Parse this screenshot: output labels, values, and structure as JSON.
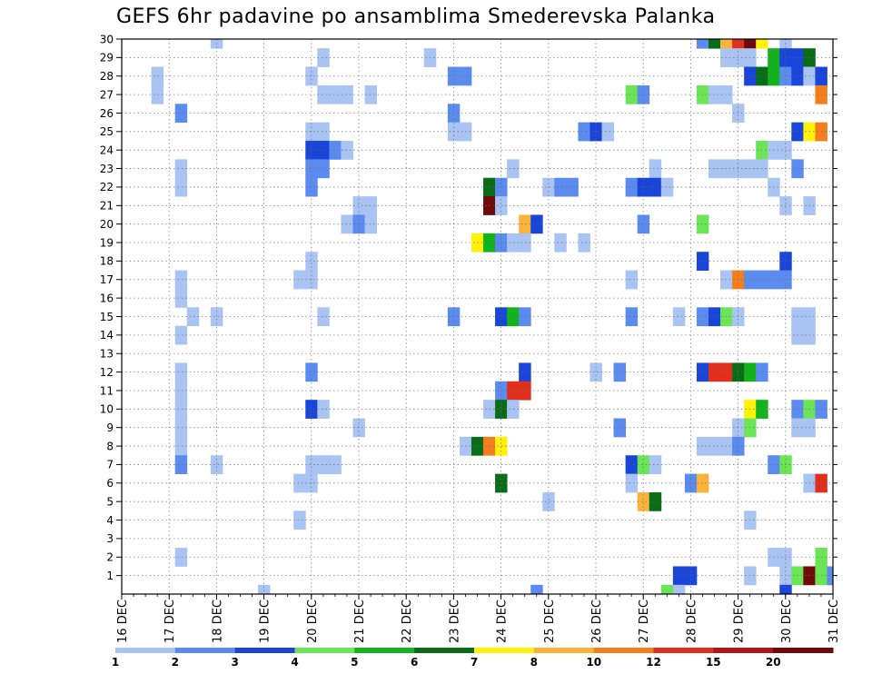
{
  "chart_data": {
    "type": "heatmap",
    "title": "GEFS 6hr padavine po ansamblima Smederevska Palanka",
    "xlabel": "",
    "ylabel": "",
    "x_tick_labels": [
      "16 DEC",
      "17 DEC",
      "18 DEC",
      "19 DEC",
      "20 DEC",
      "21 DEC",
      "22 DEC",
      "23 DEC",
      "24 DEC",
      "25 DEC",
      "26 DEC",
      "27 DEC",
      "28 DEC",
      "29 DEC",
      "30 DEC",
      "31 DEC"
    ],
    "y_tick_labels": [
      "1",
      "2",
      "3",
      "4",
      "5",
      "6",
      "7",
      "8",
      "9",
      "10",
      "11",
      "12",
      "13",
      "14",
      "15",
      "16",
      "17",
      "18",
      "19",
      "20",
      "21",
      "22",
      "23",
      "24",
      "25",
      "26",
      "27",
      "28",
      "29",
      "30"
    ],
    "x_range": [
      0,
      60
    ],
    "y_range": [
      0,
      30
    ],
    "time_step_hours": 6,
    "grid": "dotted",
    "colorbar": {
      "thresholds": [
        1,
        2,
        3,
        4,
        5,
        6,
        7,
        8,
        10,
        12,
        15,
        20
      ],
      "labels": [
        "1",
        "2",
        "3",
        "4",
        "5",
        "6",
        "7",
        "8",
        "10",
        "12",
        "15",
        "20"
      ],
      "colors": [
        "#a9c3f3",
        "#5b8bee",
        "#1945d8",
        "#6be456",
        "#12b31d",
        "#0a6c18",
        "#fff10a",
        "#f9b33a",
        "#f57e1c",
        "#e0301d",
        "#b31316",
        "#6e0a0a"
      ]
    },
    "cells": [
      [
        8,
        30,
        0
      ],
      [
        49,
        30,
        1
      ],
      [
        50,
        30,
        5
      ],
      [
        51,
        30,
        7
      ],
      [
        52,
        30,
        9
      ],
      [
        53,
        30,
        11
      ],
      [
        54,
        30,
        6
      ],
      [
        56,
        30,
        0
      ],
      [
        17,
        29,
        0
      ],
      [
        26,
        29,
        0
      ],
      [
        51,
        29,
        0
      ],
      [
        52,
        29,
        0
      ],
      [
        53,
        29,
        0
      ],
      [
        55,
        29,
        4
      ],
      [
        56,
        29,
        2
      ],
      [
        57,
        29,
        2
      ],
      [
        58,
        29,
        5
      ],
      [
        3,
        28,
        0
      ],
      [
        16,
        28,
        0
      ],
      [
        28,
        28,
        1
      ],
      [
        29,
        28,
        1
      ],
      [
        53,
        28,
        2
      ],
      [
        54,
        28,
        5
      ],
      [
        55,
        28,
        4
      ],
      [
        56,
        28,
        1
      ],
      [
        57,
        28,
        2
      ],
      [
        58,
        28,
        0
      ],
      [
        59,
        28,
        2
      ],
      [
        3,
        27,
        0
      ],
      [
        17,
        27,
        0
      ],
      [
        18,
        27,
        0
      ],
      [
        19,
        27,
        0
      ],
      [
        21,
        27,
        0
      ],
      [
        43,
        27,
        3
      ],
      [
        44,
        27,
        1
      ],
      [
        49,
        27,
        3
      ],
      [
        50,
        27,
        0
      ],
      [
        51,
        27,
        0
      ],
      [
        59,
        27,
        8
      ],
      [
        5,
        26,
        1
      ],
      [
        28,
        26,
        1
      ],
      [
        52,
        26,
        0
      ],
      [
        16,
        25,
        0
      ],
      [
        17,
        25,
        0
      ],
      [
        28,
        25,
        0
      ],
      [
        29,
        25,
        0
      ],
      [
        39,
        25,
        1
      ],
      [
        40,
        25,
        2
      ],
      [
        41,
        25,
        0
      ],
      [
        57,
        25,
        2
      ],
      [
        58,
        25,
        6
      ],
      [
        59,
        25,
        8
      ],
      [
        16,
        24,
        2
      ],
      [
        17,
        24,
        2
      ],
      [
        18,
        24,
        1
      ],
      [
        19,
        24,
        0
      ],
      [
        54,
        24,
        3
      ],
      [
        55,
        24,
        0
      ],
      [
        56,
        24,
        0
      ],
      [
        5,
        23,
        0
      ],
      [
        16,
        23,
        1
      ],
      [
        17,
        23,
        1
      ],
      [
        33,
        23,
        0
      ],
      [
        45,
        23,
        0
      ],
      [
        50,
        23,
        0
      ],
      [
        51,
        23,
        0
      ],
      [
        52,
        23,
        0
      ],
      [
        53,
        23,
        0
      ],
      [
        54,
        23,
        0
      ],
      [
        57,
        23,
        1
      ],
      [
        5,
        22,
        0
      ],
      [
        16,
        22,
        1
      ],
      [
        31,
        22,
        5
      ],
      [
        32,
        22,
        1
      ],
      [
        36,
        22,
        0
      ],
      [
        37,
        22,
        1
      ],
      [
        38,
        22,
        1
      ],
      [
        43,
        22,
        1
      ],
      [
        44,
        22,
        2
      ],
      [
        45,
        22,
        2
      ],
      [
        46,
        22,
        0
      ],
      [
        55,
        22,
        0
      ],
      [
        20,
        21,
        0
      ],
      [
        21,
        21,
        0
      ],
      [
        31,
        21,
        11
      ],
      [
        32,
        21,
        0
      ],
      [
        56,
        21,
        0
      ],
      [
        58,
        21,
        0
      ],
      [
        19,
        20,
        0
      ],
      [
        20,
        20,
        1
      ],
      [
        21,
        20,
        0
      ],
      [
        34,
        20,
        7
      ],
      [
        35,
        20,
        2
      ],
      [
        44,
        20,
        1
      ],
      [
        49,
        20,
        3
      ],
      [
        30,
        19,
        6
      ],
      [
        31,
        19,
        4
      ],
      [
        32,
        19,
        1
      ],
      [
        33,
        19,
        0
      ],
      [
        34,
        19,
        0
      ],
      [
        37,
        19,
        0
      ],
      [
        39,
        19,
        0
      ],
      [
        16,
        18,
        0
      ],
      [
        49,
        18,
        2
      ],
      [
        56,
        18,
        2
      ],
      [
        5,
        17,
        0
      ],
      [
        15,
        17,
        0
      ],
      [
        16,
        17,
        0
      ],
      [
        43,
        17,
        0
      ],
      [
        51,
        17,
        0
      ],
      [
        52,
        17,
        8
      ],
      [
        53,
        17,
        1
      ],
      [
        54,
        17,
        1
      ],
      [
        55,
        17,
        1
      ],
      [
        56,
        17,
        1
      ],
      [
        5,
        16,
        0
      ],
      [
        6,
        15,
        0
      ],
      [
        8,
        15,
        0
      ],
      [
        17,
        15,
        0
      ],
      [
        28,
        15,
        1
      ],
      [
        32,
        15,
        2
      ],
      [
        33,
        15,
        4
      ],
      [
        34,
        15,
        1
      ],
      [
        43,
        15,
        1
      ],
      [
        47,
        15,
        0
      ],
      [
        49,
        15,
        1
      ],
      [
        50,
        15,
        2
      ],
      [
        51,
        15,
        3
      ],
      [
        52,
        15,
        0
      ],
      [
        57,
        15,
        0
      ],
      [
        58,
        15,
        0
      ],
      [
        5,
        14,
        0
      ],
      [
        57,
        14,
        0
      ],
      [
        58,
        14,
        0
      ],
      [
        34,
        12,
        2
      ],
      [
        40,
        12,
        0
      ],
      [
        42,
        12,
        1
      ],
      [
        49,
        12,
        2
      ],
      [
        50,
        12,
        9
      ],
      [
        51,
        12,
        9
      ],
      [
        52,
        12,
        5
      ],
      [
        53,
        12,
        4
      ],
      [
        54,
        12,
        1
      ],
      [
        5,
        12,
        0
      ],
      [
        16,
        12,
        1
      ],
      [
        5,
        11,
        0
      ],
      [
        32,
        11,
        1
      ],
      [
        33,
        11,
        9
      ],
      [
        34,
        11,
        9
      ],
      [
        5,
        10,
        0
      ],
      [
        16,
        10,
        2
      ],
      [
        17,
        10,
        0
      ],
      [
        31,
        10,
        0
      ],
      [
        32,
        10,
        5
      ],
      [
        33,
        10,
        0
      ],
      [
        53,
        10,
        6
      ],
      [
        54,
        10,
        4
      ],
      [
        57,
        10,
        1
      ],
      [
        58,
        10,
        3
      ],
      [
        59,
        10,
        1
      ],
      [
        5,
        9,
        0
      ],
      [
        20,
        9,
        0
      ],
      [
        42,
        9,
        1
      ],
      [
        52,
        9,
        0
      ],
      [
        53,
        9,
        3
      ],
      [
        57,
        9,
        0
      ],
      [
        58,
        9,
        0
      ],
      [
        5,
        8,
        0
      ],
      [
        29,
        8,
        0
      ],
      [
        30,
        8,
        5
      ],
      [
        31,
        8,
        8
      ],
      [
        32,
        8,
        6
      ],
      [
        49,
        8,
        0
      ],
      [
        50,
        8,
        0
      ],
      [
        51,
        8,
        0
      ],
      [
        52,
        8,
        1
      ],
      [
        5,
        7,
        1
      ],
      [
        8,
        7,
        0
      ],
      [
        16,
        7,
        0
      ],
      [
        17,
        7,
        0
      ],
      [
        18,
        7,
        0
      ],
      [
        43,
        7,
        2
      ],
      [
        44,
        7,
        3
      ],
      [
        45,
        7,
        0
      ],
      [
        55,
        7,
        1
      ],
      [
        56,
        7,
        3
      ],
      [
        15,
        6,
        0
      ],
      [
        16,
        6,
        0
      ],
      [
        32,
        6,
        5
      ],
      [
        43,
        6,
        0
      ],
      [
        48,
        6,
        1
      ],
      [
        49,
        6,
        7
      ],
      [
        58,
        6,
        0
      ],
      [
        59,
        6,
        9
      ],
      [
        36,
        5,
        0
      ],
      [
        44,
        5,
        7
      ],
      [
        45,
        5,
        5
      ],
      [
        15,
        4,
        0
      ],
      [
        53,
        4,
        0
      ],
      [
        5,
        2,
        0
      ],
      [
        55,
        2,
        0
      ],
      [
        56,
        2,
        0
      ],
      [
        59,
        2,
        3
      ],
      [
        47,
        1,
        2
      ],
      [
        48,
        1,
        2
      ],
      [
        53,
        1,
        0
      ],
      [
        56,
        1,
        0
      ],
      [
        57,
        1,
        3
      ],
      [
        58,
        1,
        11
      ],
      [
        59,
        1,
        3
      ],
      [
        60,
        1,
        1
      ],
      [
        12,
        0,
        0
      ],
      [
        35,
        0,
        1
      ],
      [
        46,
        0,
        3
      ],
      [
        47,
        0,
        0
      ],
      [
        56,
        0,
        2
      ]
    ]
  }
}
